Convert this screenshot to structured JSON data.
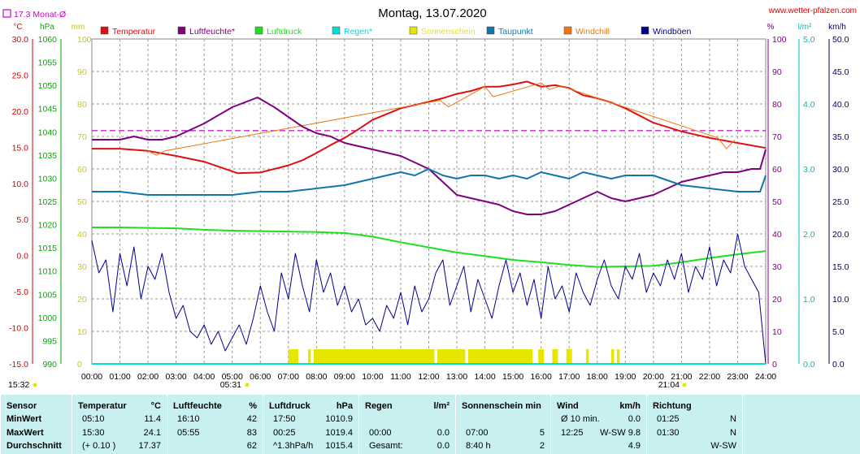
{
  "header": {
    "title": "Montag, 13.07.2020",
    "site": "www.wetter-pfalzen.com",
    "monthly_avg": "17.3 Monat-Ø",
    "sunrise": "05:31",
    "sunset": "21:04",
    "left_time": "15:32"
  },
  "units": {
    "temp": "°C",
    "pressure": "hPa",
    "rain": "mm",
    "humidity": "%",
    "rain_rate": "l/m²",
    "wind": "km/h"
  },
  "legend": [
    {
      "label": "Temperatur",
      "color": "#dd1111"
    },
    {
      "label": "Luftfeuchte*",
      "color": "#800080"
    },
    {
      "label": "Luftdruck",
      "color": "#22dd22"
    },
    {
      "label": "Regen*",
      "color": "#00dddd"
    },
    {
      "label": "Sonnenschein",
      "color": "#e6e600"
    },
    {
      "label": "Taupunkt",
      "color": "#1177aa"
    },
    {
      "label": "Windchill",
      "color": "#ee7711"
    },
    {
      "label": "Windböen",
      "color": "#000090"
    }
  ],
  "chart_data": {
    "type": "line",
    "x_ticks": [
      "00:00",
      "01:00",
      "02:00",
      "03:00",
      "04:00",
      "05:00",
      "06:00",
      "07:00",
      "08:00",
      "09:00",
      "10:00",
      "11:00",
      "12:00",
      "13:00",
      "14:00",
      "15:00",
      "16:00",
      "17:00",
      "18:00",
      "19:00",
      "20:00",
      "21:00",
      "22:00",
      "23:00",
      "24:00"
    ],
    "axes": {
      "temp": {
        "ticks": [
          "30.0",
          "25.0",
          "20.0",
          "15.0",
          "10.0",
          "5.0",
          "0.0",
          "-5.0",
          "-10.0",
          "-15.0"
        ],
        "range": [
          -15,
          30
        ]
      },
      "pressure": {
        "ticks": [
          "1060",
          "1055",
          "1050",
          "1045",
          "1040",
          "1035",
          "1030",
          "1025",
          "1020",
          "1015",
          "1010",
          "1005",
          "1000",
          "995",
          "990"
        ],
        "range": [
          990,
          1060
        ]
      },
      "rain_mm": {
        "ticks": [
          "100",
          "90",
          "80",
          "70",
          "60",
          "50",
          "40",
          "30",
          "20",
          "10",
          "0"
        ],
        "range": [
          0,
          100
        ]
      },
      "humidity": {
        "ticks": [
          "100",
          "90",
          "80",
          "70",
          "60",
          "50",
          "40",
          "30",
          "20",
          "10",
          "0"
        ],
        "range": [
          0,
          100
        ]
      },
      "rain_rate": {
        "ticks": [
          "5.0",
          "4.0",
          "3.0",
          "2.0",
          "1.0",
          "0.0"
        ],
        "range": [
          0,
          5
        ]
      },
      "wind": {
        "ticks": [
          "50.0",
          "45.0",
          "40.0",
          "35.0",
          "30.0",
          "25.0",
          "20.0",
          "15.0",
          "10.0",
          "5.0",
          "0.0"
        ],
        "range": [
          0,
          50
        ]
      }
    },
    "monthly_avg_temp": 17.3,
    "series": [
      {
        "name": "Temperatur",
        "axis": "temp",
        "x": [
          0,
          0.5,
          1,
          2,
          3,
          4,
          5.2,
          6,
          6.5,
          7,
          7.5,
          8,
          8.5,
          9,
          9.5,
          10,
          11,
          12,
          12.5,
          13,
          13.5,
          14,
          14.5,
          15,
          15.5,
          16,
          16.5,
          17,
          17.5,
          18,
          18.5,
          19,
          20,
          21,
          22,
          23,
          24
        ],
        "values": [
          14.8,
          14.8,
          14.8,
          14.5,
          13.8,
          13.0,
          11.4,
          11.5,
          12.0,
          12.5,
          13.2,
          14.2,
          15.3,
          16.3,
          17.5,
          18.8,
          20.4,
          21.3,
          21.8,
          22.4,
          22.8,
          23.4,
          23.4,
          23.7,
          24.1,
          23.4,
          23.6,
          23.2,
          22.2,
          21.8,
          21.2,
          20.4,
          18.4,
          17.2,
          16.3,
          15.6,
          14.9
        ]
      },
      {
        "name": "Windchill",
        "axis": "temp",
        "x": [
          2,
          2.3,
          2.6,
          12.4,
          12.7,
          14,
          14.3,
          16,
          16.3,
          16.7,
          22.3,
          22.6,
          22.9
        ],
        "values": [
          14.5,
          13.9,
          14.5,
          21.5,
          20.6,
          23.4,
          22.0,
          23.9,
          23.0,
          23.5,
          16.3,
          14.8,
          16.0
        ]
      },
      {
        "name": "Luftfeuchte*",
        "axis": "humidity",
        "x": [
          0,
          1,
          1.5,
          2,
          2.5,
          3,
          4,
          5,
          5.9,
          6.5,
          7,
          7.5,
          8,
          8.5,
          9,
          9.5,
          10,
          10.5,
          11,
          11.5,
          12,
          12.5,
          13,
          13.5,
          14,
          14.5,
          15,
          15.5,
          16,
          16.5,
          17,
          17.5,
          18,
          18.5,
          19,
          19.5,
          20,
          20.5,
          21,
          21.5,
          22,
          22.5,
          23,
          23.5,
          23.8,
          24
        ],
        "values": [
          69,
          69,
          70,
          69,
          69,
          70,
          74,
          79,
          82,
          79,
          76,
          73,
          71,
          70,
          68,
          67,
          66,
          65,
          64,
          62,
          60,
          56,
          52,
          51,
          50,
          49,
          47,
          46,
          46,
          47,
          49,
          51,
          53,
          51,
          50,
          51,
          52,
          54,
          56,
          57,
          58,
          59,
          59,
          60,
          60,
          66
        ]
      },
      {
        "name": "Taupunkt",
        "axis": "humidity",
        "x": [
          0,
          1,
          2,
          3,
          4,
          5,
          6,
          7,
          8,
          9,
          10,
          10.5,
          11,
          11.5,
          12,
          12.5,
          13,
          13.5,
          14,
          14.5,
          15,
          15.5,
          16,
          16.5,
          17,
          17.5,
          18,
          18.5,
          19,
          20,
          21,
          22,
          23,
          23.8,
          24
        ],
        "values": [
          53,
          53,
          52,
          52,
          52,
          52,
          53,
          53,
          54,
          55,
          57,
          58,
          59,
          58,
          60,
          58,
          57,
          58,
          58,
          57,
          58,
          57,
          59,
          58,
          57,
          59,
          58,
          57,
          58,
          58,
          55,
          54,
          53,
          53,
          58
        ]
      },
      {
        "name": "Luftdruck",
        "axis": "pressure",
        "x": [
          0,
          1,
          2,
          3,
          4,
          5,
          6,
          7,
          8,
          9,
          10,
          11,
          12,
          13,
          14,
          15,
          16,
          17,
          18,
          19,
          20,
          21,
          22,
          23,
          24
        ],
        "values": [
          1019.4,
          1019.4,
          1019.3,
          1019.2,
          1018.9,
          1018.7,
          1018.6,
          1018.5,
          1018.4,
          1018.2,
          1017.4,
          1016.2,
          1015.1,
          1014.0,
          1013.2,
          1012.4,
          1011.9,
          1011.3,
          1010.9,
          1011.0,
          1011.1,
          1011.9,
          1012.8,
          1013.6,
          1014.3
        ]
      },
      {
        "name": "Windböen",
        "axis": "wind",
        "x": [
          0,
          0.25,
          0.5,
          0.75,
          1,
          1.25,
          1.5,
          1.75,
          2,
          2.25,
          2.5,
          2.75,
          3,
          3.25,
          3.5,
          3.75,
          4,
          4.25,
          4.5,
          4.75,
          5,
          5.25,
          5.5,
          5.75,
          6,
          6.25,
          6.5,
          6.75,
          7,
          7.25,
          7.5,
          7.75,
          8,
          8.25,
          8.5,
          8.75,
          9,
          9.25,
          9.5,
          9.75,
          10,
          10.25,
          10.5,
          10.75,
          11,
          11.25,
          11.5,
          11.75,
          12,
          12.25,
          12.5,
          12.75,
          13,
          13.25,
          13.5,
          13.75,
          14,
          14.25,
          14.5,
          14.75,
          15,
          15.25,
          15.5,
          15.75,
          16,
          16.25,
          16.5,
          16.75,
          17,
          17.25,
          17.5,
          17.75,
          18,
          18.25,
          18.5,
          18.75,
          19,
          19.25,
          19.5,
          19.75,
          20,
          20.25,
          20.5,
          20.75,
          21,
          21.25,
          21.5,
          21.75,
          22,
          22.25,
          22.5,
          22.75,
          23,
          23.25,
          23.5,
          23.75,
          24
        ],
        "values": [
          19,
          14,
          16,
          8,
          17,
          12,
          18,
          10,
          15,
          13,
          17,
          11,
          7,
          9,
          5,
          4,
          6,
          3,
          5,
          2,
          4,
          6,
          3,
          7,
          12,
          8,
          5,
          14,
          10,
          17,
          12,
          8,
          16,
          11,
          14,
          9,
          12,
          8,
          10,
          6,
          7,
          5,
          9,
          7,
          11,
          6,
          12,
          8,
          10,
          14,
          16,
          9,
          12,
          15,
          8,
          13,
          10,
          7,
          12,
          16,
          11,
          14,
          9,
          13,
          7,
          15,
          10,
          12,
          8,
          14,
          11,
          9,
          13,
          16,
          12,
          10,
          15,
          13,
          17,
          11,
          14,
          12,
          16,
          13,
          17,
          11,
          15,
          13,
          18,
          12,
          16,
          14,
          20,
          15,
          13,
          11,
          0
        ]
      },
      {
        "name": "Sonnenschein",
        "axis": "rain_mm",
        "intervals": [
          [
            7.0,
            7.35
          ],
          [
            7.7,
            7.8
          ],
          [
            7.9,
            12.2
          ],
          [
            12.3,
            13.3
          ],
          [
            13.4,
            15.7
          ],
          [
            15.9,
            16.1
          ],
          [
            16.4,
            16.6
          ],
          [
            16.9,
            17.1
          ],
          [
            17.6,
            17.7
          ],
          [
            18.5,
            18.6
          ],
          [
            18.7,
            18.8
          ]
        ]
      },
      {
        "name": "Regen*",
        "axis": "rain_rate",
        "x": [
          0,
          24
        ],
        "values": [
          0,
          0
        ]
      }
    ]
  },
  "stats": {
    "sensor": {
      "header": "Sensor",
      "rows": [
        "MinWert",
        "MaxWert",
        "Durchschnitt"
      ]
    },
    "temperature": {
      "header": "Temperatur",
      "unit": "°C",
      "rows": [
        [
          "05:10",
          "11.4"
        ],
        [
          "15:30",
          "24.1"
        ],
        [
          "(+ 0.10 )",
          "17.37"
        ]
      ]
    },
    "humidity": {
      "header": "Luftfeuchte",
      "unit": "%",
      "rows": [
        [
          "16:10",
          "42"
        ],
        [
          "05:55",
          "83"
        ],
        [
          "",
          "62"
        ]
      ]
    },
    "pressure": {
      "header": "Luftdruck",
      "unit": "hPa",
      "rows": [
        [
          "17:50",
          "1010.9"
        ],
        [
          "00:25",
          "1019.4"
        ],
        [
          "^1.3hPa/h",
          "1015.4"
        ]
      ]
    },
    "rain": {
      "header": "Regen",
      "unit": "l/m²",
      "rows": [
        [
          "",
          ""
        ],
        [
          "00:00",
          "0.0"
        ],
        [
          "Gesamt:",
          "0.0"
        ]
      ]
    },
    "sun": {
      "header": "Sonnenschein min",
      "unit": "",
      "rows": [
        [
          "",
          ""
        ],
        [
          "07:00",
          "5"
        ],
        [
          "8:40 h",
          "2"
        ]
      ]
    },
    "wind": {
      "header": "Wind",
      "unit": "km/h",
      "rows": [
        [
          "Ø 10 min.",
          "0.0"
        ],
        [
          "12:25",
          "W-SW 9.8"
        ],
        [
          "",
          "4.9"
        ]
      ]
    },
    "direction": {
      "header": "Richtung",
      "unit": "",
      "rows": [
        [
          "01:25",
          "N"
        ],
        [
          "01:30",
          "N"
        ],
        [
          "",
          "W-SW"
        ]
      ]
    }
  }
}
